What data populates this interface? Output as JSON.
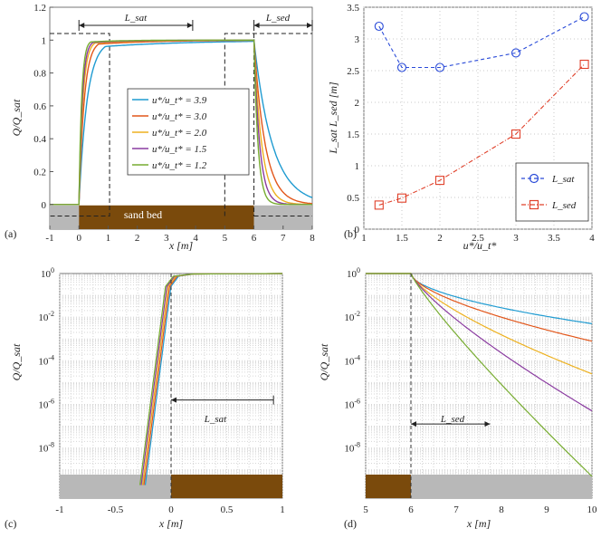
{
  "chart_data": [
    {
      "panel": "(a)",
      "type": "line",
      "xlabel": "x [m]",
      "ylabel": "Q/Q_sat",
      "xlim": [
        -1,
        8
      ],
      "ylim": [
        -0.15,
        1.2
      ],
      "xticks": [
        "-1",
        "0",
        "1",
        "2",
        "3",
        "4",
        "5",
        "6",
        "7",
        "8"
      ],
      "yticks": [
        "0",
        "0.2",
        "0.4",
        "0.6",
        "0.8",
        "1",
        "1.2"
      ],
      "bed_label": "sand bed",
      "bed_range": [
        0,
        6
      ],
      "annotations": {
        "lsat": "L_sat",
        "lsed": "L_sed"
      },
      "dashed_box_sat": [
        0,
        1.05
      ],
      "dashed_box_sed": [
        5,
        6
      ],
      "series": [
        {
          "name": "u*/u_t* = 3.9",
          "ratio": 3.9,
          "color": "#1f9bd1",
          "rise": 0.62,
          "decay": 0.9
        },
        {
          "name": "u*/u_t* = 3.0",
          "ratio": 3.0,
          "color": "#e2561a",
          "rise": 0.4,
          "decay": 0.55
        },
        {
          "name": "u*/u_t* = 2.0",
          "ratio": 2.0,
          "color": "#edb120",
          "rise": 0.3,
          "decay": 0.38
        },
        {
          "name": "u*/u_t* = 1.5",
          "ratio": 1.5,
          "color": "#8a3ba0",
          "rise": 0.25,
          "decay": 0.28
        },
        {
          "name": "u*/u_t* = 1.2",
          "ratio": 1.2,
          "color": "#77ac30",
          "rise": 0.2,
          "decay": 0.2
        }
      ]
    },
    {
      "panel": "(b)",
      "type": "line",
      "xlabel": "u*/u_t*",
      "ylabel": "L_sat   L_sed  [m]",
      "xlim": [
        1,
        4
      ],
      "ylim": [
        0,
        3.5
      ],
      "xticks": [
        "1",
        "1.5",
        "2",
        "2.5",
        "3",
        "3.5",
        "4"
      ],
      "yticks": [
        "0",
        "0.5",
        "1",
        "1.5",
        "2",
        "2.5",
        "3",
        "3.5"
      ],
      "legend": [
        "L_sat",
        "L_sed"
      ],
      "series": [
        {
          "name": "L_sat",
          "color": "#2a4bd8",
          "marker": "circle",
          "x": [
            1.2,
            1.5,
            2.0,
            3.0,
            3.9
          ],
          "values": [
            3.2,
            2.55,
            2.55,
            2.78,
            3.35
          ]
        },
        {
          "name": "L_sed",
          "color": "#e0402a",
          "marker": "square",
          "x": [
            1.2,
            1.5,
            2.0,
            3.0,
            3.9
          ],
          "values": [
            0.38,
            0.49,
            0.77,
            1.5,
            2.6
          ]
        }
      ]
    },
    {
      "panel": "(c)",
      "type": "line",
      "scale": "log",
      "xlabel": "x [m]",
      "ylabel": "Q/Q_sat",
      "xlim": [
        -1,
        1
      ],
      "xticks": [
        "-1",
        "-0.5",
        "0",
        "0.5",
        "1"
      ],
      "yexp": [
        "0",
        "-2",
        "-4",
        "-6",
        "-8"
      ],
      "annotation": "L_sat"
    },
    {
      "panel": "(d)",
      "type": "line",
      "scale": "log",
      "xlabel": "x [m]",
      "ylabel": "Q/Q_sat",
      "xlim": [
        5,
        10
      ],
      "xticks": [
        "5",
        "6",
        "7",
        "8",
        "9",
        "10"
      ],
      "yexp": [
        "0",
        "-2",
        "-4",
        "-6",
        "-8"
      ],
      "annotation": "L_sed",
      "end_values_log10": [
        -2.3,
        -3.1,
        -4.6,
        -6.3,
        -9.3
      ]
    }
  ]
}
